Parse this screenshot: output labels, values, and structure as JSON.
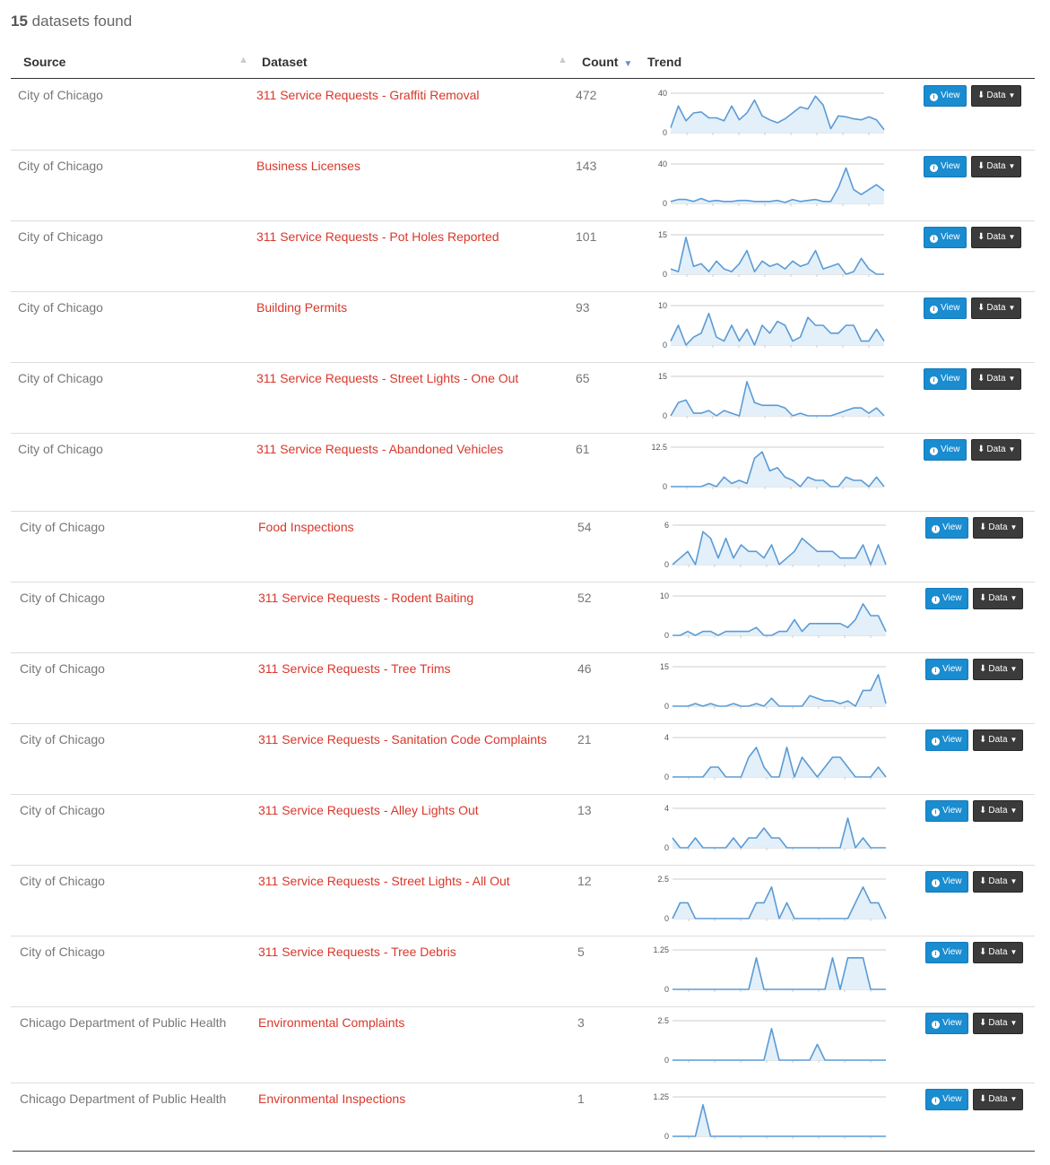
{
  "summary": {
    "count": "15",
    "label": "datasets found"
  },
  "columns": {
    "source": "Source",
    "dataset": "Dataset",
    "count": "Count",
    "trend": "Trend"
  },
  "buttons": {
    "view": "View",
    "data": "Data"
  },
  "rows": [
    {
      "source": "City of Chicago",
      "dataset": "311 Service Requests - Graffiti Removal",
      "count": "472",
      "trend": {
        "max_label": "40",
        "min_label": "0",
        "max": 40,
        "values": [
          5,
          27,
          12,
          20,
          21,
          15,
          15,
          12,
          27,
          13,
          20,
          33,
          17,
          13,
          10,
          14,
          20,
          26,
          24,
          37,
          28,
          4,
          17,
          16,
          14,
          13,
          16,
          13,
          3
        ]
      }
    },
    {
      "source": "City of Chicago",
      "dataset": "Business Licenses",
      "count": "143",
      "trend": {
        "max_label": "40",
        "min_label": "0",
        "max": 40,
        "values": [
          2,
          4,
          4,
          2,
          5,
          2,
          3,
          2,
          2,
          3,
          3,
          2,
          2,
          2,
          3,
          1,
          4,
          2,
          3,
          4,
          2,
          2,
          16,
          36,
          14,
          9,
          14,
          19,
          13
        ]
      }
    },
    {
      "source": "City of Chicago",
      "dataset": "311 Service Requests - Pot Holes Reported",
      "count": "101",
      "trend": {
        "max_label": "15",
        "min_label": "0",
        "max": 15,
        "values": [
          2,
          1,
          14,
          3,
          4,
          1,
          5,
          2,
          1,
          4,
          9,
          1,
          5,
          3,
          4,
          2,
          5,
          3,
          4,
          9,
          2,
          3,
          4,
          0,
          1,
          6,
          2,
          0,
          0
        ]
      }
    },
    {
      "source": "City of Chicago",
      "dataset": "Building Permits",
      "count": "93",
      "trend": {
        "max_label": "10",
        "min_label": "0",
        "max": 10,
        "values": [
          1,
          5,
          0,
          2,
          3,
          8,
          2,
          1,
          5,
          1,
          4,
          0,
          5,
          3,
          6,
          5,
          1,
          2,
          7,
          5,
          5,
          3,
          3,
          5,
          5,
          1,
          1,
          4,
          1
        ]
      }
    },
    {
      "source": "City of Chicago",
      "dataset": "311 Service Requests - Street Lights - One Out",
      "count": "65",
      "trend": {
        "max_label": "15",
        "min_label": "0",
        "max": 15,
        "values": [
          0,
          5,
          6,
          1,
          1,
          2,
          0,
          2,
          1,
          0,
          13,
          5,
          4,
          4,
          4,
          3,
          0,
          1,
          0,
          0,
          0,
          0,
          1,
          2,
          3,
          3,
          1,
          3,
          0
        ]
      }
    },
    {
      "source": "City of Chicago",
      "dataset": "311 Service Requests - Abandoned Vehicles",
      "count": "61",
      "trend": {
        "max_label": "12.5",
        "min_label": "0",
        "max": 12.5,
        "values": [
          0,
          0,
          0,
          0,
          0,
          1,
          0,
          3,
          1,
          2,
          1,
          9,
          11,
          5,
          6,
          3,
          2,
          0,
          3,
          2,
          2,
          0,
          0,
          3,
          2,
          2,
          0,
          3,
          0
        ]
      }
    },
    {
      "source": "City of Chicago",
      "dataset": "Food Inspections",
      "count": "54",
      "trend": {
        "max_label": "6",
        "min_label": "0",
        "max": 6,
        "values": [
          0,
          1,
          2,
          0,
          5,
          4,
          1,
          4,
          1,
          3,
          2,
          2,
          1,
          3,
          0,
          1,
          2,
          4,
          3,
          2,
          2,
          2,
          1,
          1,
          1,
          3,
          0,
          3,
          0
        ]
      }
    },
    {
      "source": "City of Chicago",
      "dataset": "311 Service Requests - Rodent Baiting",
      "count": "52",
      "trend": {
        "max_label": "10",
        "min_label": "0",
        "max": 10,
        "values": [
          0,
          0,
          1,
          0,
          1,
          1,
          0,
          1,
          1,
          1,
          1,
          2,
          0,
          0,
          1,
          1,
          4,
          1,
          3,
          3,
          3,
          3,
          3,
          2,
          4,
          8,
          5,
          5,
          1
        ]
      }
    },
    {
      "source": "City of Chicago",
      "dataset": "311 Service Requests - Tree Trims",
      "count": "46",
      "trend": {
        "max_label": "15",
        "min_label": "0",
        "max": 15,
        "values": [
          0,
          0,
          0,
          1,
          0,
          1,
          0,
          0,
          1,
          0,
          0,
          1,
          0,
          3,
          0,
          0,
          0,
          0,
          4,
          3,
          2,
          2,
          1,
          2,
          0,
          6,
          6,
          12,
          1
        ]
      }
    },
    {
      "source": "City of Chicago",
      "dataset": "311 Service Requests - Sanitation Code Complaints",
      "count": "21",
      "trend": {
        "max_label": "4",
        "min_label": "0",
        "max": 4,
        "values": [
          0,
          0,
          0,
          0,
          0,
          1,
          1,
          0,
          0,
          0,
          2,
          3,
          1,
          0,
          0,
          3,
          0,
          2,
          1,
          0,
          1,
          2,
          2,
          1,
          0,
          0,
          0,
          1,
          0
        ]
      }
    },
    {
      "source": "City of Chicago",
      "dataset": "311 Service Requests - Alley Lights Out",
      "count": "13",
      "trend": {
        "max_label": "4",
        "min_label": "0",
        "max": 4,
        "values": [
          1,
          0,
          0,
          1,
          0,
          0,
          0,
          0,
          1,
          0,
          1,
          1,
          2,
          1,
          1,
          0,
          0,
          0,
          0,
          0,
          0,
          0,
          0,
          3,
          0,
          1,
          0,
          0,
          0
        ]
      }
    },
    {
      "source": "City of Chicago",
      "dataset": "311 Service Requests - Street Lights - All Out",
      "count": "12",
      "trend": {
        "max_label": "2.5",
        "min_label": "0",
        "max": 2.5,
        "values": [
          0,
          1,
          1,
          0,
          0,
          0,
          0,
          0,
          0,
          0,
          0,
          1,
          1,
          2,
          0,
          1,
          0,
          0,
          0,
          0,
          0,
          0,
          0,
          0,
          1,
          2,
          1,
          1,
          0
        ]
      }
    },
    {
      "source": "City of Chicago",
      "dataset": "311 Service Requests - Tree Debris",
      "count": "5",
      "trend": {
        "max_label": "1.25",
        "min_label": "0",
        "max": 1.25,
        "values": [
          0,
          0,
          0,
          0,
          0,
          0,
          0,
          0,
          0,
          0,
          0,
          1,
          0,
          0,
          0,
          0,
          0,
          0,
          0,
          0,
          0,
          1,
          0,
          1,
          1,
          1,
          0,
          0,
          0
        ]
      }
    },
    {
      "source": "Chicago Department of Public Health",
      "dataset": "Environmental Complaints",
      "count": "3",
      "trend": {
        "max_label": "2.5",
        "min_label": "0",
        "max": 2.5,
        "values": [
          0,
          0,
          0,
          0,
          0,
          0,
          0,
          0,
          0,
          0,
          0,
          0,
          0,
          2,
          0,
          0,
          0,
          0,
          0,
          1,
          0,
          0,
          0,
          0,
          0,
          0,
          0,
          0,
          0
        ]
      }
    },
    {
      "source": "Chicago Department of Public Health",
      "dataset": "Environmental Inspections",
      "count": "1",
      "trend": {
        "max_label": "1.25",
        "min_label": "0",
        "max": 1.25,
        "values": [
          0,
          0,
          0,
          0,
          1,
          0,
          0,
          0,
          0,
          0,
          0,
          0,
          0,
          0,
          0,
          0,
          0,
          0,
          0,
          0,
          0,
          0,
          0,
          0,
          0,
          0,
          0,
          0,
          0
        ]
      }
    }
  ],
  "colors": {
    "link": "#d9372a",
    "spark_line": "#5b9bd5",
    "spark_fill": "#e3f0fa",
    "view_button": "#1a8cd0",
    "data_button": "#3b3b3b"
  },
  "icons": {
    "view": "info-circle-icon",
    "data": "download-icon",
    "data_caret": "caret-down-icon"
  }
}
